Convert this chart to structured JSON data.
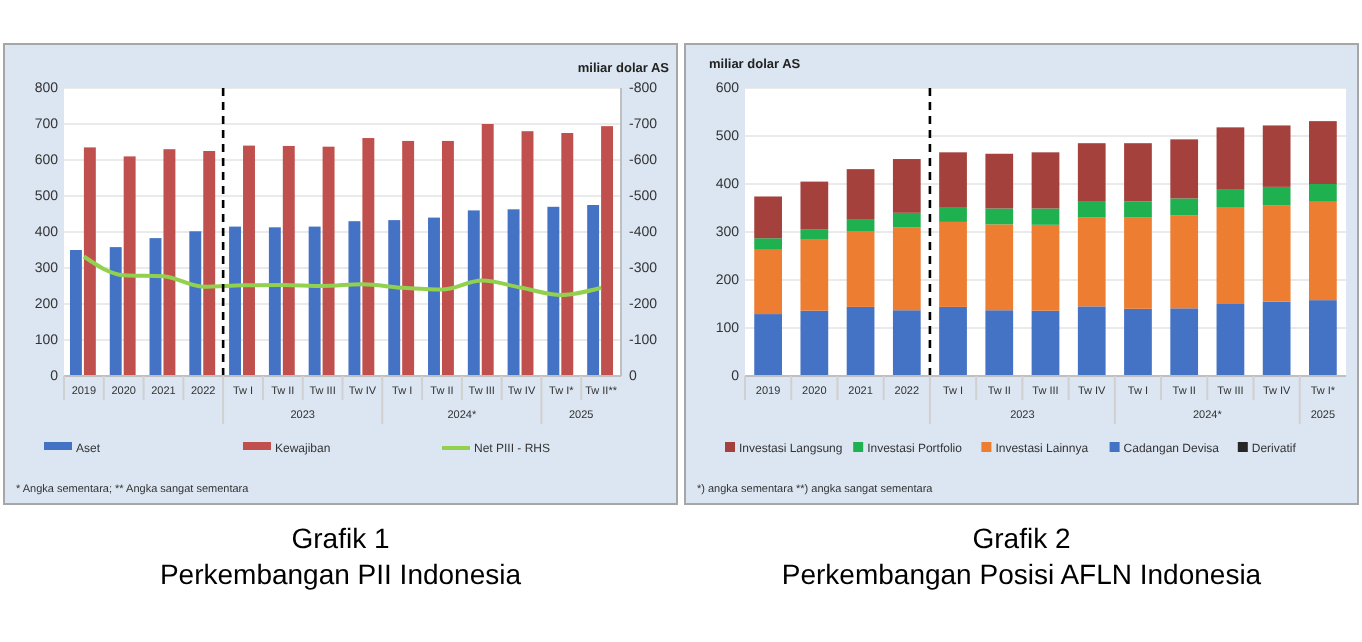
{
  "chart_data": [
    {
      "type": "bar",
      "title": "Grafik 1",
      "subtitle": "Perkembangan PII Indonesia",
      "y2label": "miliar dolar AS",
      "categories": [
        "2019",
        "2020",
        "2021",
        "2022",
        "Tw I",
        "Tw II",
        "Tw III",
        "Tw IV",
        "Tw I",
        "Tw II",
        "Tw III",
        "Tw IV",
        "Tw I*",
        "Tw II**"
      ],
      "series": [
        {
          "name": "Aset",
          "color": "#4472c4",
          "values": [
            350,
            358,
            383,
            402,
            415,
            413,
            415,
            430,
            433,
            440,
            460,
            463,
            470,
            475
          ]
        },
        {
          "name": "Kewajiban",
          "color": "#c0504d",
          "values": [
            635,
            610,
            630,
            625,
            640,
            639,
            637,
            661,
            653,
            653,
            700,
            680,
            675,
            694
          ]
        },
        {
          "name": "Net PIII - RHS",
          "type": "line",
          "axis": "y2",
          "color": "#92d050",
          "values": [
            -332,
            -280,
            -277,
            -248,
            -252,
            -253,
            -250,
            -255,
            -245,
            -240,
            -265,
            -245,
            -225,
            -245
          ]
        }
      ],
      "ylim": [
        0,
        800
      ],
      "yticks": [
        0,
        100,
        200,
        300,
        400,
        500,
        600,
        700,
        800
      ],
      "y2lim": [
        0,
        -800
      ],
      "y2ticks": [
        0,
        -100,
        -200,
        -300,
        -400,
        -500,
        -600,
        -700,
        -800
      ],
      "grid": "y",
      "legend": "bottom",
      "marker": "none",
      "ref_lines": [
        {
          "axis": "x",
          "value": "2022",
          "line_style": "dashed",
          "color": "#000000"
        }
      ],
      "annotations": [
        "2023",
        "2024*",
        "2025",
        "* Angka sementara; ** Angka sangat sementara"
      ]
    },
    {
      "type": "bar",
      "stacked": true,
      "title": "Grafik 2",
      "subtitle": "Perkembangan Posisi AFLN Indonesia",
      "ylabel": "miliar dolar AS",
      "categories": [
        "2019",
        "2020",
        "2021",
        "2022",
        "Tw I",
        "Tw II",
        "Tw III",
        "Tw IV",
        "Tw I",
        "Tw II",
        "Tw III",
        "Tw IV",
        "Tw I*"
      ],
      "series": [
        {
          "name": "Derivatif",
          "color": "#262626",
          "values": [
            null,
            null,
            null,
            null,
            null,
            null,
            null,
            null,
            null,
            null,
            null,
            null,
            null
          ]
        },
        {
          "name": "Cadangan Devisa",
          "color": "#4472c4",
          "values": [
            129,
            136,
            144,
            137,
            144,
            137,
            136,
            145,
            140,
            141,
            150,
            155,
            158
          ]
        },
        {
          "name": "Investasi Lainnya",
          "color": "#ed7d31",
          "values": [
            134,
            148,
            158,
            173,
            177,
            179,
            179,
            185,
            190,
            194,
            202,
            200,
            205
          ]
        },
        {
          "name": "Investasi Portfolio",
          "color": "#1fb050",
          "values": [
            24,
            21,
            25,
            30,
            31,
            33,
            34,
            33,
            34,
            35,
            36,
            39,
            37
          ]
        },
        {
          "name": "Investasi Langsung",
          "color": "#a5413c",
          "values": [
            87,
            100,
            104,
            112,
            114,
            114,
            117,
            122,
            121,
            123,
            130,
            128,
            131
          ]
        }
      ],
      "ylim": [
        0,
        600
      ],
      "yticks": [
        0,
        100,
        200,
        300,
        400,
        500,
        600
      ],
      "grid": "y",
      "legend": "bottom",
      "ref_lines": [
        {
          "axis": "x",
          "value": "2022",
          "line_style": "dashed",
          "color": "#000000"
        }
      ],
      "annotations": [
        "2023",
        "2024*",
        "2025",
        "*) angka sementara  **) angka sangat sementara"
      ]
    }
  ]
}
